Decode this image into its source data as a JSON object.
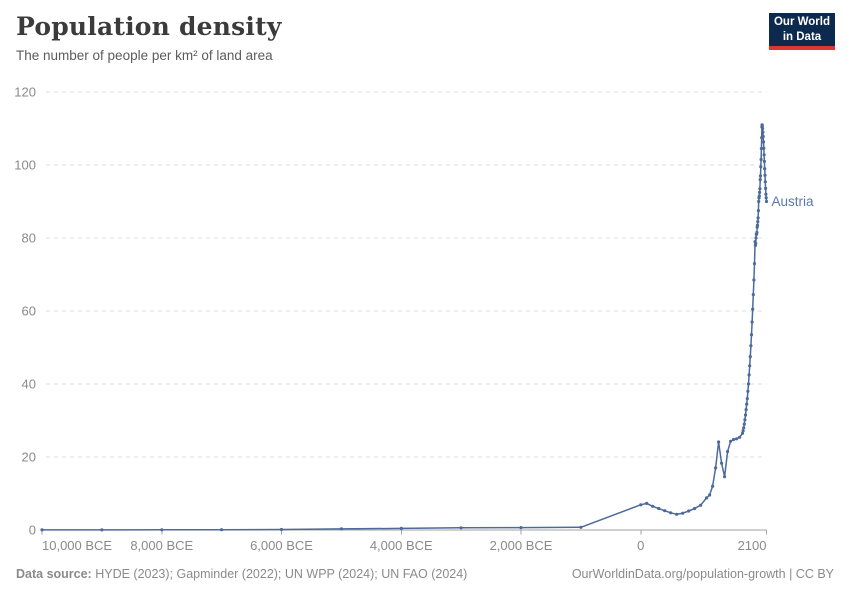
{
  "header": {
    "title": "Population density",
    "subtitle": "The number of people per km² of land area"
  },
  "logo": {
    "line1": "Our World",
    "line2": "in Data"
  },
  "footer": {
    "source_label": "Data source:",
    "source_text": " HYDE (2023); Gapminder (2022); UN WPP (2024); UN FAO (2024)",
    "credit_text": "OurWorldinData.org/population-growth | CC BY"
  },
  "chart_data": {
    "type": "line",
    "title": "Population density",
    "subtitle": "The number of people per km² of land area",
    "xlabel": "",
    "ylabel": "People per km² of land area",
    "xlim": [
      -10000,
      2100
    ],
    "ylim": [
      0,
      120
    ],
    "grid": "horizontal-dashed",
    "legend_position": "end-of-line-label",
    "colors": {
      "line": "#4c6a9c",
      "label": "#5b79ad",
      "grid": "#dcdcdc",
      "axis": "#a1a1a1",
      "tick_text": "#8a8a8a"
    },
    "x_ticks": [
      {
        "value": -10000,
        "label": "10,000 BCE",
        "anchor": "start"
      },
      {
        "value": -8000,
        "label": "8,000 BCE",
        "anchor": "middle"
      },
      {
        "value": -6000,
        "label": "6,000 BCE",
        "anchor": "middle"
      },
      {
        "value": -4000,
        "label": "4,000 BCE",
        "anchor": "middle"
      },
      {
        "value": -2000,
        "label": "2,000 BCE",
        "anchor": "middle"
      },
      {
        "value": 0,
        "label": "0",
        "anchor": "middle"
      },
      {
        "value": 2100,
        "label": "2100",
        "anchor": "end"
      }
    ],
    "y_ticks": [
      0,
      20,
      40,
      60,
      80,
      100,
      120
    ],
    "series": [
      {
        "name": "Austria",
        "points": [
          [
            -10000,
            0.03
          ],
          [
            -9000,
            0.04
          ],
          [
            -8000,
            0.05
          ],
          [
            -7000,
            0.08
          ],
          [
            -6000,
            0.15
          ],
          [
            -5000,
            0.3
          ],
          [
            -4000,
            0.45
          ],
          [
            -3000,
            0.6
          ],
          [
            -2000,
            0.65
          ],
          [
            -1000,
            0.75
          ],
          [
            0,
            6.9
          ],
          [
            100,
            7.3
          ],
          [
            200,
            6.5
          ],
          [
            300,
            5.9
          ],
          [
            400,
            5.3
          ],
          [
            500,
            4.7
          ],
          [
            600,
            4.3
          ],
          [
            700,
            4.6
          ],
          [
            800,
            5.2
          ],
          [
            900,
            5.9
          ],
          [
            1000,
            6.8
          ],
          [
            1100,
            8.8
          ],
          [
            1150,
            9.6
          ],
          [
            1200,
            12
          ],
          [
            1250,
            17
          ],
          [
            1300,
            24.1
          ],
          [
            1350,
            18.3
          ],
          [
            1400,
            14.6
          ],
          [
            1450,
            21.5
          ],
          [
            1500,
            24.3
          ],
          [
            1550,
            24.8
          ],
          [
            1600,
            25
          ],
          [
            1650,
            25.4
          ],
          [
            1700,
            26.5
          ],
          [
            1710,
            27.2
          ],
          [
            1720,
            28
          ],
          [
            1730,
            29
          ],
          [
            1740,
            30.2
          ],
          [
            1750,
            31.5
          ],
          [
            1760,
            33
          ],
          [
            1770,
            34.5
          ],
          [
            1780,
            36
          ],
          [
            1790,
            38
          ],
          [
            1800,
            40
          ],
          [
            1810,
            42.5
          ],
          [
            1820,
            45
          ],
          [
            1830,
            47.5
          ],
          [
            1840,
            50.5
          ],
          [
            1850,
            53.5
          ],
          [
            1860,
            57
          ],
          [
            1870,
            60.5
          ],
          [
            1880,
            64.5
          ],
          [
            1890,
            68.5
          ],
          [
            1900,
            73
          ],
          [
            1910,
            79
          ],
          [
            1915,
            78
          ],
          [
            1920,
            78.5
          ],
          [
            1925,
            80
          ],
          [
            1930,
            81
          ],
          [
            1935,
            81
          ],
          [
            1940,
            81.5
          ],
          [
            1945,
            83
          ],
          [
            1950,
            83.5
          ],
          [
            1955,
            84.5
          ],
          [
            1960,
            85.5
          ],
          [
            1965,
            87.5
          ],
          [
            1970,
            90
          ],
          [
            1975,
            91
          ],
          [
            1980,
            91.5
          ],
          [
            1985,
            92.5
          ],
          [
            1990,
            93.5
          ],
          [
            1995,
            96
          ],
          [
            2000,
            97
          ],
          [
            2005,
            99.5
          ],
          [
            2010,
            101.5
          ],
          [
            2015,
            104.5
          ],
          [
            2020,
            107.5
          ],
          [
            2023,
            110.4
          ],
          [
            2027,
            111
          ],
          [
            2030,
            110.7
          ],
          [
            2035,
            110
          ],
          [
            2040,
            109
          ],
          [
            2045,
            107.8
          ],
          [
            2050,
            106.3
          ],
          [
            2055,
            104.6
          ],
          [
            2060,
            102.8
          ],
          [
            2065,
            101
          ],
          [
            2070,
            99
          ],
          [
            2075,
            97.2
          ],
          [
            2080,
            95.4
          ],
          [
            2085,
            93.6
          ],
          [
            2090,
            92
          ],
          [
            2095,
            91
          ],
          [
            2100,
            90
          ]
        ]
      }
    ]
  }
}
